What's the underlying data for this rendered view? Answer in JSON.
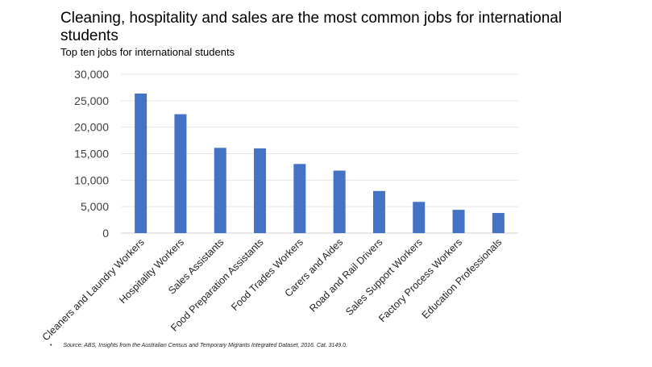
{
  "chart_data": {
    "type": "bar",
    "title": "Cleaning, hospitality and sales are the most common jobs for international students",
    "subtitle": "Top ten jobs for international students",
    "categories": [
      "Cleaners and Laundry Workers",
      "Hospitality Workers",
      "Sales Assistants",
      "Food Preparation Assistants",
      "Food Trades Workers",
      "Carers and Aides",
      "Road and Rail Drivers",
      "Sales Support Workers",
      "Factory Process Workers",
      "Education Professionals"
    ],
    "values": [
      26350,
      22450,
      16100,
      16000,
      13050,
      11800,
      7950,
      5900,
      4400,
      3800
    ],
    "xlabel": "",
    "ylabel": "",
    "ylim": [
      0,
      30000
    ],
    "yticks": [
      "0",
      "5,000",
      "10,000",
      "15,000",
      "20,000",
      "25,000",
      "30,000"
    ],
    "grid": true,
    "bar_color": "#4472C4",
    "legend": "none"
  },
  "source": "Source: ABS, Insights from the Australian Census and Temporary Migrants Integrated Dataset, 2016. Cat. 3149.0."
}
